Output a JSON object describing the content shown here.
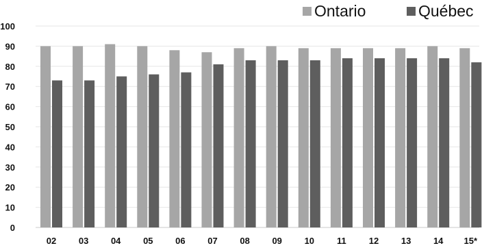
{
  "chart_data": {
    "type": "bar",
    "categories": [
      "02",
      "03",
      "04",
      "05",
      "06",
      "07",
      "08",
      "09",
      "10",
      "11",
      "12",
      "13",
      "14",
      "15*"
    ],
    "series": [
      {
        "name": "Ontario",
        "color": "#a6a6a6",
        "values": [
          90,
          90,
          91,
          90,
          88,
          87,
          89,
          90,
          89,
          89,
          89,
          89,
          90,
          89
        ]
      },
      {
        "name": "Québec",
        "color": "#5e5e5e",
        "values": [
          73,
          73,
          75,
          76,
          77,
          81,
          83,
          83,
          83,
          84,
          84,
          84,
          84,
          82
        ]
      }
    ],
    "ylim": [
      0,
      100
    ],
    "yticks": [
      0,
      10,
      20,
      30,
      40,
      50,
      60,
      70,
      80,
      90,
      100
    ],
    "grid": true,
    "legend_position": "top-right",
    "title": "",
    "xlabel": "",
    "ylabel": ""
  }
}
